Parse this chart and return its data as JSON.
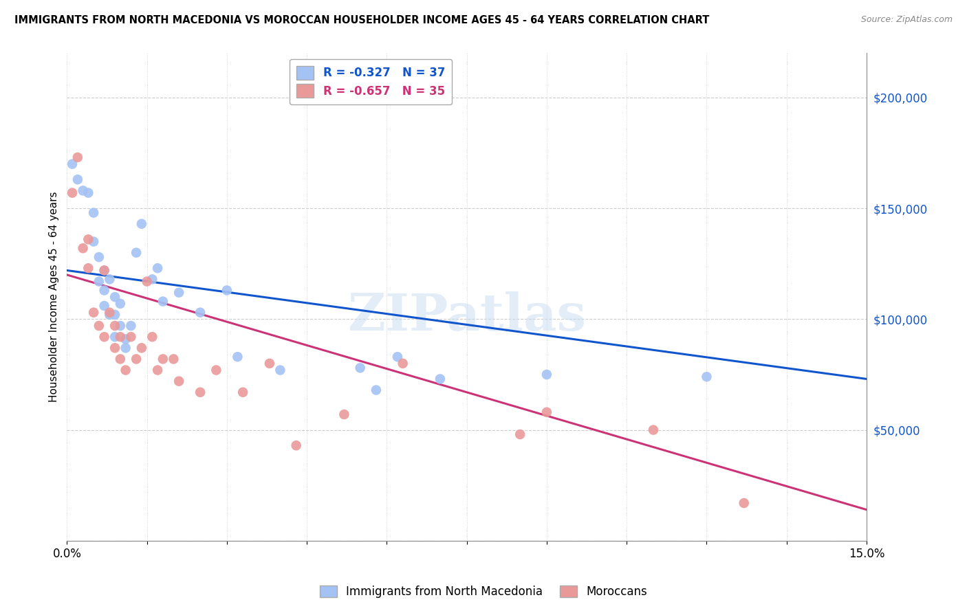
{
  "title": "IMMIGRANTS FROM NORTH MACEDONIA VS MOROCCAN HOUSEHOLDER INCOME AGES 45 - 64 YEARS CORRELATION CHART",
  "source": "Source: ZipAtlas.com",
  "ylabel": "Householder Income Ages 45 - 64 years",
  "xlim": [
    0.0,
    0.15
  ],
  "ylim": [
    0,
    220000
  ],
  "yticks": [
    0,
    50000,
    100000,
    150000,
    200000
  ],
  "blue_R": -0.327,
  "blue_N": 37,
  "pink_R": -0.657,
  "pink_N": 35,
  "blue_color": "#a4c2f4",
  "pink_color": "#ea9999",
  "blue_line_color": "#1155cc",
  "pink_line_color": "#cc3377",
  "watermark": "ZIPatlas",
  "blue_line_x0": 0.0,
  "blue_line_y0": 122000,
  "blue_line_x1": 0.15,
  "blue_line_y1": 73000,
  "pink_line_x0": 0.0,
  "pink_line_y0": 120000,
  "pink_line_x1": 0.15,
  "pink_line_y1": 14000,
  "blue_scatter_x": [
    0.001,
    0.002,
    0.003,
    0.004,
    0.005,
    0.005,
    0.006,
    0.006,
    0.007,
    0.007,
    0.007,
    0.008,
    0.008,
    0.009,
    0.009,
    0.009,
    0.01,
    0.01,
    0.011,
    0.011,
    0.012,
    0.013,
    0.014,
    0.016,
    0.017,
    0.018,
    0.021,
    0.025,
    0.03,
    0.032,
    0.04,
    0.055,
    0.058,
    0.062,
    0.07,
    0.09,
    0.12
  ],
  "blue_scatter_y": [
    170000,
    163000,
    158000,
    157000,
    135000,
    148000,
    128000,
    117000,
    122000,
    113000,
    106000,
    118000,
    102000,
    110000,
    102000,
    92000,
    107000,
    97000,
    91000,
    87000,
    97000,
    130000,
    143000,
    118000,
    123000,
    108000,
    112000,
    103000,
    113000,
    83000,
    77000,
    78000,
    68000,
    83000,
    73000,
    75000,
    74000
  ],
  "pink_scatter_x": [
    0.001,
    0.002,
    0.003,
    0.004,
    0.004,
    0.005,
    0.006,
    0.007,
    0.007,
    0.008,
    0.009,
    0.009,
    0.01,
    0.01,
    0.011,
    0.012,
    0.013,
    0.014,
    0.015,
    0.016,
    0.017,
    0.018,
    0.02,
    0.021,
    0.025,
    0.028,
    0.033,
    0.038,
    0.043,
    0.052,
    0.063,
    0.085,
    0.09,
    0.11,
    0.127
  ],
  "pink_scatter_y": [
    157000,
    173000,
    132000,
    136000,
    123000,
    103000,
    97000,
    122000,
    92000,
    103000,
    97000,
    87000,
    82000,
    92000,
    77000,
    92000,
    82000,
    87000,
    117000,
    92000,
    77000,
    82000,
    82000,
    72000,
    67000,
    77000,
    67000,
    80000,
    43000,
    57000,
    80000,
    48000,
    58000,
    50000,
    17000
  ]
}
